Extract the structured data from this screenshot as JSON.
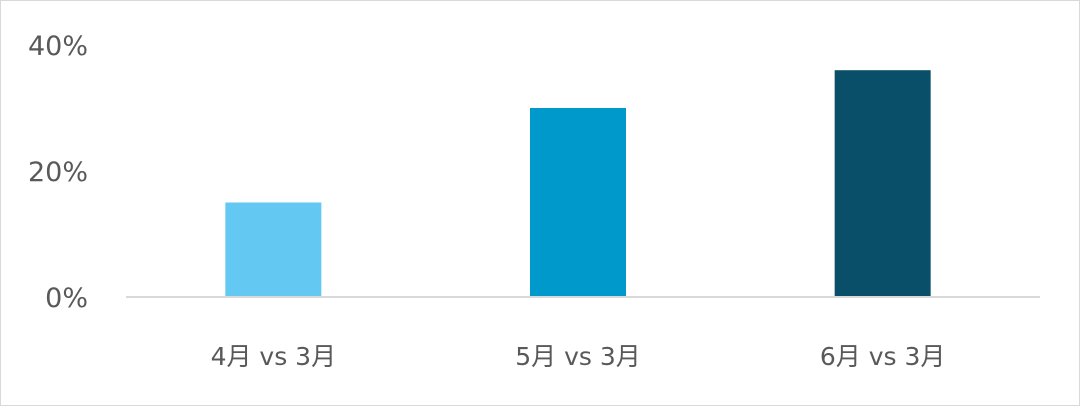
{
  "chart_data": {
    "type": "bar",
    "title": "",
    "xlabel": "",
    "ylabel": "",
    "categories": [
      "4月 vs 3月",
      "5月 vs 3月",
      "6月 vs 3月"
    ],
    "values": [
      15,
      30,
      36
    ],
    "value_unit": "%",
    "ylim": [
      0,
      40
    ],
    "yticks": [
      "0%",
      "20%",
      "40%"
    ],
    "ytick_values": [
      0,
      20,
      40
    ],
    "grid": false,
    "legend": "none",
    "colors": [
      "#63c9f2",
      "#0099cc",
      "#0a4f69"
    ],
    "axis_color": "#d9d9d9"
  }
}
